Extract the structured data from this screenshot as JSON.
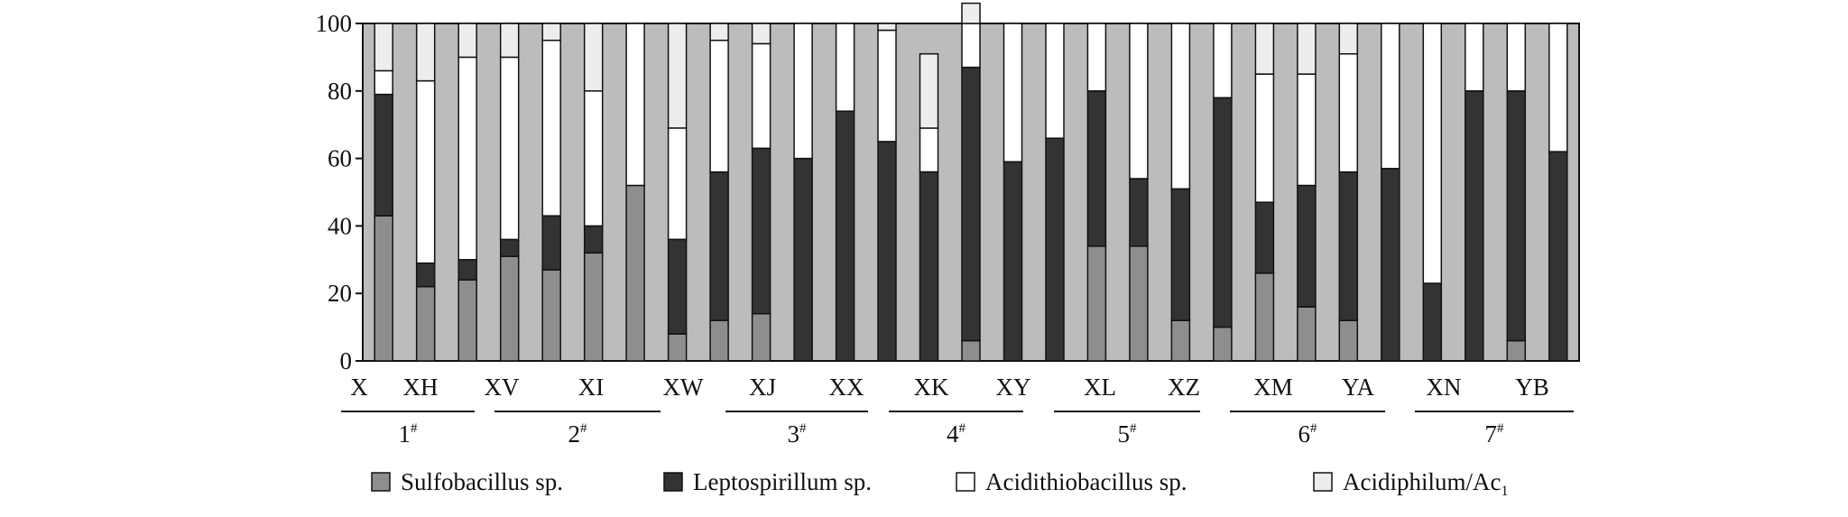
{
  "chart_data": {
    "type": "bar",
    "stacked": true,
    "ylim": [
      0,
      100
    ],
    "yticks": [
      "0",
      "20",
      "40",
      "60",
      "80",
      "100"
    ],
    "grid": false,
    "legend_position": "bottom",
    "category_labels": [
      "X",
      "XH",
      "XV",
      "XI",
      "XW",
      "XJ",
      "XX",
      "XK",
      "XY",
      "XL",
      "XZ",
      "XM",
      "YA",
      "XN",
      "YB"
    ],
    "group_labels": [
      "1",
      "2",
      "3",
      "4",
      "5",
      "6",
      "7"
    ],
    "group_label_superscript": "#",
    "colors": {
      "sulfobacillus": "#8e8e8e",
      "leptospirillum": "#333333",
      "acidithiobacillus": "#ffffff",
      "acidiphilum": "#ededed",
      "background_band": "#bcbcbc"
    },
    "series": [
      {
        "name": "Sulfobacillus sp.",
        "values": [
          43,
          22,
          24,
          31,
          27,
          32,
          52,
          8,
          12,
          14,
          0,
          0,
          0,
          0,
          6,
          0,
          0,
          34,
          34,
          12,
          10,
          26,
          16,
          12,
          0,
          0,
          0,
          6,
          0
        ]
      },
      {
        "name": "Leptospirillum sp.",
        "values": [
          36,
          7,
          6,
          5,
          16,
          8,
          0,
          28,
          44,
          49,
          60,
          74,
          65,
          56,
          81,
          59,
          66,
          46,
          20,
          39,
          68,
          21,
          36,
          44,
          57,
          23,
          80,
          74,
          62
        ]
      },
      {
        "name": "Acidithiobacillus sp.",
        "values": [
          7,
          54,
          60,
          54,
          52,
          40,
          48,
          33,
          39,
          31,
          40,
          26,
          33,
          13,
          13,
          41,
          34,
          20,
          46,
          49,
          22,
          38,
          33,
          35,
          43,
          77,
          20,
          20,
          38
        ]
      },
      {
        "name": "Acidiphilum/Ac",
        "name_subscript": "1",
        "values": [
          14,
          17,
          10,
          10,
          5,
          20,
          0,
          31,
          5,
          6,
          0,
          0,
          2,
          22,
          6,
          0,
          0,
          0,
          0,
          0,
          0,
          15,
          15,
          9,
          0,
          0,
          0,
          0,
          0
        ]
      }
    ]
  }
}
